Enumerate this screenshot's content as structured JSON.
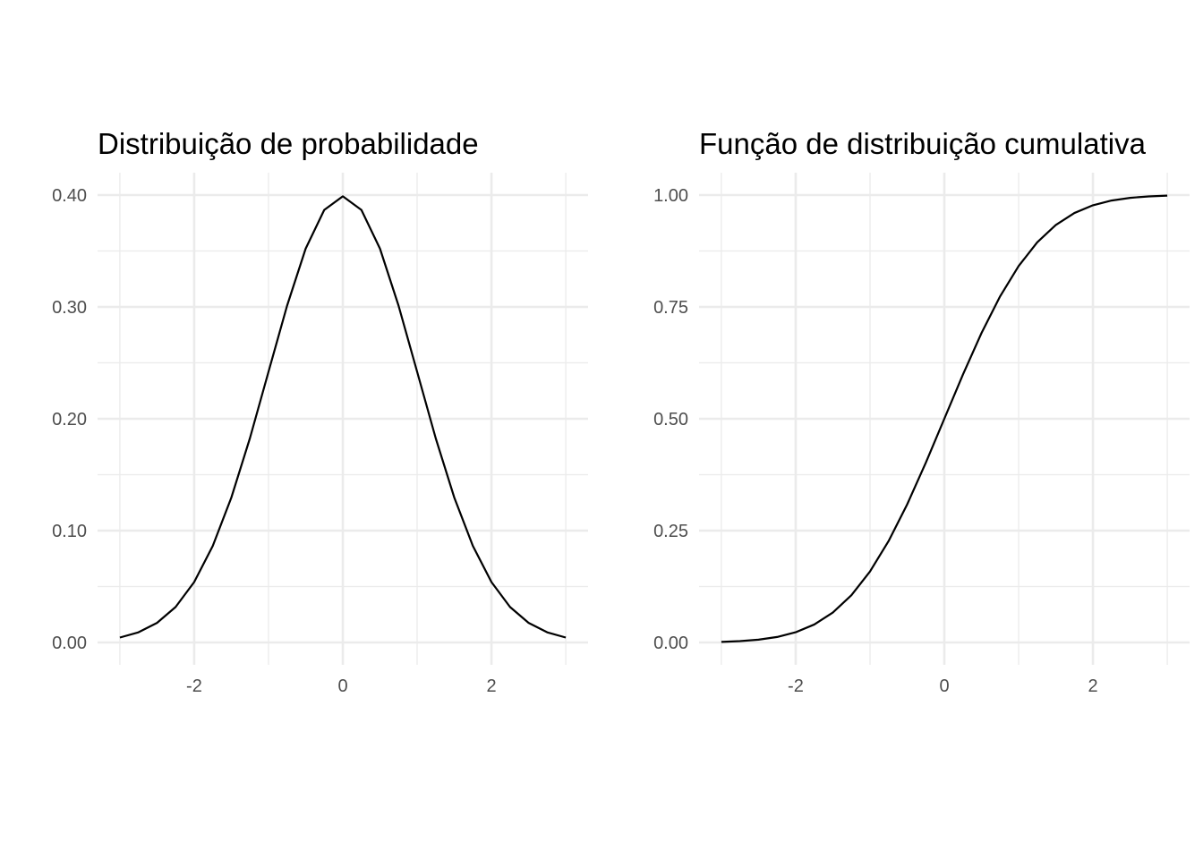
{
  "chart_data": [
    {
      "type": "line",
      "title": "Distribuição de probabilidade",
      "xlabel": "",
      "ylabel": "",
      "xlim": [
        -3,
        3
      ],
      "ylim": [
        0,
        0.4
      ],
      "x_ticks": [
        -2,
        0,
        2
      ],
      "x_tick_labels": [
        "-2",
        "0",
        "2"
      ],
      "y_ticks": [
        0,
        0.1,
        0.2,
        0.3,
        0.4
      ],
      "y_tick_labels": [
        "0.00",
        "0.10",
        "0.20",
        "0.30",
        "0.40"
      ],
      "grid": true,
      "line_color": "#000000",
      "series": [
        {
          "x": [
            -3.0,
            -2.75,
            -2.5,
            -2.25,
            -2.0,
            -1.75,
            -1.5,
            -1.25,
            -1.0,
            -0.75,
            -0.5,
            -0.25,
            0.0,
            0.25,
            0.5,
            0.75,
            1.0,
            1.25,
            1.5,
            1.75,
            2.0,
            2.25,
            2.5,
            2.75,
            3.0
          ],
          "values": [
            0.0044,
            0.0091,
            0.0175,
            0.0317,
            0.054,
            0.0863,
            0.1295,
            0.1826,
            0.242,
            0.3011,
            0.3521,
            0.3867,
            0.3989,
            0.3867,
            0.3521,
            0.3011,
            0.242,
            0.1826,
            0.1295,
            0.0863,
            0.054,
            0.0317,
            0.0175,
            0.0091,
            0.0044
          ]
        }
      ]
    },
    {
      "type": "line",
      "title": "Função de distribuição cumulativa",
      "xlabel": "",
      "ylabel": "",
      "xlim": [
        -3,
        3
      ],
      "ylim": [
        0,
        1
      ],
      "x_ticks": [
        -2,
        0,
        2
      ],
      "x_tick_labels": [
        "-2",
        "0",
        "2"
      ],
      "y_ticks": [
        0,
        0.25,
        0.5,
        0.75,
        1
      ],
      "y_tick_labels": [
        "0.00",
        "0.25",
        "0.50",
        "0.75",
        "1.00"
      ],
      "grid": true,
      "line_color": "#000000",
      "series": [
        {
          "x": [
            -3.0,
            -2.75,
            -2.5,
            -2.25,
            -2.0,
            -1.75,
            -1.5,
            -1.25,
            -1.0,
            -0.75,
            -0.5,
            -0.25,
            0.0,
            0.25,
            0.5,
            0.75,
            1.0,
            1.25,
            1.5,
            1.75,
            2.0,
            2.25,
            2.5,
            2.75,
            3.0
          ],
          "values": [
            0.0013,
            0.003,
            0.0062,
            0.0122,
            0.0228,
            0.0401,
            0.0668,
            0.1056,
            0.1587,
            0.2266,
            0.3085,
            0.4013,
            0.5,
            0.5987,
            0.6915,
            0.7734,
            0.8413,
            0.8944,
            0.9332,
            0.9599,
            0.9772,
            0.9878,
            0.9938,
            0.997,
            0.9987
          ]
        }
      ]
    }
  ]
}
